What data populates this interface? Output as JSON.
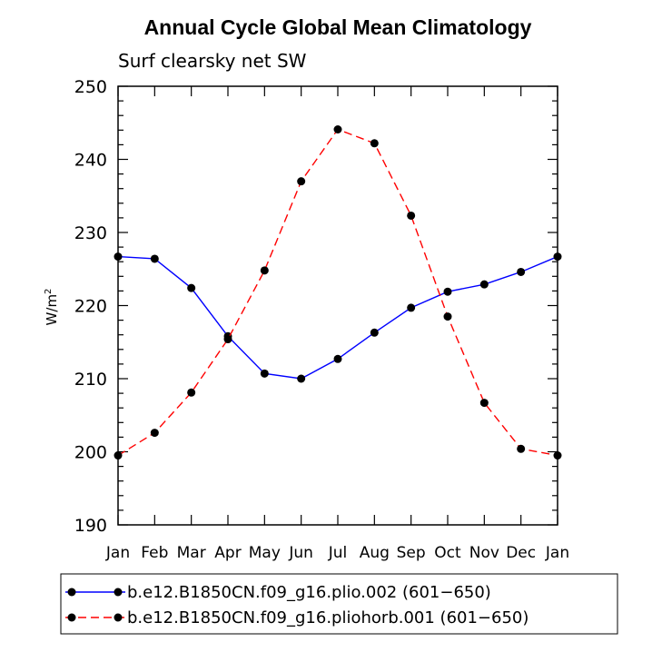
{
  "chart_data": {
    "type": "line",
    "title": "Annual Cycle Global Mean Climatology",
    "subtitle": "Surf clearsky net SW",
    "xlabel": "",
    "ylabel_base": "W/m",
    "ylabel_exp": "2",
    "categories": [
      "Jan",
      "Feb",
      "Mar",
      "Apr",
      "May",
      "Jun",
      "Jul",
      "Aug",
      "Sep",
      "Oct",
      "Nov",
      "Dec",
      "Jan"
    ],
    "ylim": [
      190,
      250
    ],
    "yticks": [
      190,
      200,
      210,
      220,
      230,
      240,
      250
    ],
    "grid": false,
    "legend_position": "bottom",
    "series": [
      {
        "name": "b.e12.B1850CN.f09_g16.plio.002 (601−650)",
        "color": "#0000ff",
        "style": "solid",
        "values": [
          226.7,
          226.4,
          222.4,
          215.8,
          210.7,
          210.0,
          212.7,
          216.3,
          219.7,
          221.9,
          222.9,
          224.6,
          226.7
        ]
      },
      {
        "name": "b.e12.B1850CN.f09_g16.pliohorb.001 (601−650)",
        "color": "#ff0000",
        "style": "dashed",
        "values": [
          199.5,
          202.6,
          208.1,
          215.4,
          224.8,
          237.0,
          244.1,
          242.2,
          232.3,
          218.5,
          206.7,
          200.4,
          199.5
        ]
      }
    ]
  }
}
